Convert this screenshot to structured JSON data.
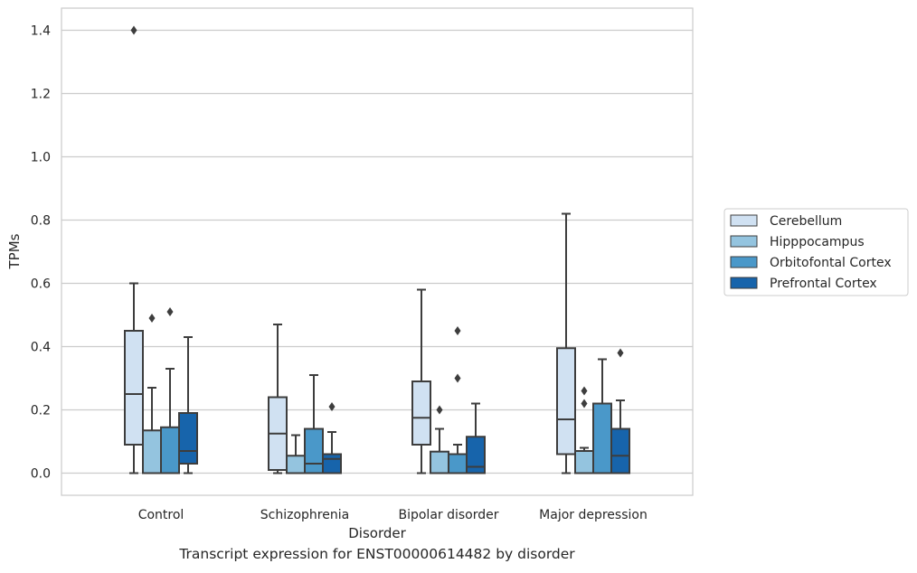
{
  "caption": "Transcript expression for ENST00000614482 by disorder",
  "chart_data": {
    "type": "box",
    "xlabel": "Disorder",
    "ylabel": "TPMs",
    "ylim": [
      -0.07,
      1.47
    ],
    "yticks": [
      "0.0",
      "0.2",
      "0.4",
      "0.6",
      "0.8",
      "1.0",
      "1.2",
      "1.4"
    ],
    "grid": "horizontal",
    "legend_position": "right",
    "categories": [
      "Control",
      "Schizophrenia",
      "Bipolar disorder",
      "Major depression"
    ],
    "series": [
      {
        "name": "Cerebellum",
        "color": "#d0e1f2",
        "boxes": [
          {
            "whisker_low": 0.0,
            "q1": 0.09,
            "median": 0.25,
            "q3": 0.45,
            "whisker_high": 0.6,
            "outliers": [
              1.4
            ]
          },
          {
            "whisker_low": 0.0,
            "q1": 0.01,
            "median": 0.125,
            "q3": 0.24,
            "whisker_high": 0.47,
            "outliers": []
          },
          {
            "whisker_low": 0.0,
            "q1": 0.09,
            "median": 0.175,
            "q3": 0.29,
            "whisker_high": 0.58,
            "outliers": []
          },
          {
            "whisker_low": 0.0,
            "q1": 0.06,
            "median": 0.17,
            "q3": 0.395,
            "whisker_high": 0.82,
            "outliers": []
          }
        ]
      },
      {
        "name": "Hipppocampus",
        "color": "#94c4df",
        "boxes": [
          {
            "whisker_low": 0.0,
            "q1": 0.0,
            "median": 0.0,
            "q3": 0.135,
            "whisker_high": 0.27,
            "outliers": [
              0.49
            ]
          },
          {
            "whisker_low": 0.0,
            "q1": 0.0,
            "median": 0.0,
            "q3": 0.055,
            "whisker_high": 0.12,
            "outliers": []
          },
          {
            "whisker_low": 0.0,
            "q1": 0.0,
            "median": 0.0,
            "q3": 0.068,
            "whisker_high": 0.14,
            "outliers": [
              0.2
            ]
          },
          {
            "whisker_low": 0.0,
            "q1": 0.0,
            "median": 0.0,
            "q3": 0.07,
            "whisker_high": 0.08,
            "outliers": [
              0.22,
              0.26
            ]
          }
        ]
      },
      {
        "name": "Orbitofontal Cortex",
        "color": "#4a98c9",
        "boxes": [
          {
            "whisker_low": 0.0,
            "q1": 0.0,
            "median": 0.0,
            "q3": 0.145,
            "whisker_high": 0.33,
            "outliers": [
              0.51
            ]
          },
          {
            "whisker_low": 0.0,
            "q1": 0.0,
            "median": 0.03,
            "q3": 0.14,
            "whisker_high": 0.31,
            "outliers": []
          },
          {
            "whisker_low": 0.0,
            "q1": 0.0,
            "median": 0.0,
            "q3": 0.06,
            "whisker_high": 0.09,
            "outliers": [
              0.3,
              0.45
            ]
          },
          {
            "whisker_low": 0.0,
            "q1": 0.0,
            "median": 0.0,
            "q3": 0.22,
            "whisker_high": 0.36,
            "outliers": []
          }
        ]
      },
      {
        "name": "Prefrontal Cortex",
        "color": "#1764ab",
        "boxes": [
          {
            "whisker_low": 0.0,
            "q1": 0.03,
            "median": 0.07,
            "q3": 0.19,
            "whisker_high": 0.43,
            "outliers": []
          },
          {
            "whisker_low": 0.0,
            "q1": 0.0,
            "median": 0.045,
            "q3": 0.06,
            "whisker_high": 0.13,
            "outliers": [
              0.21
            ]
          },
          {
            "whisker_low": 0.0,
            "q1": 0.0,
            "median": 0.02,
            "q3": 0.115,
            "whisker_high": 0.22,
            "outliers": []
          },
          {
            "whisker_low": 0.0,
            "q1": 0.0,
            "median": 0.055,
            "q3": 0.14,
            "whisker_high": 0.23,
            "outliers": [
              0.38
            ]
          }
        ]
      }
    ]
  }
}
